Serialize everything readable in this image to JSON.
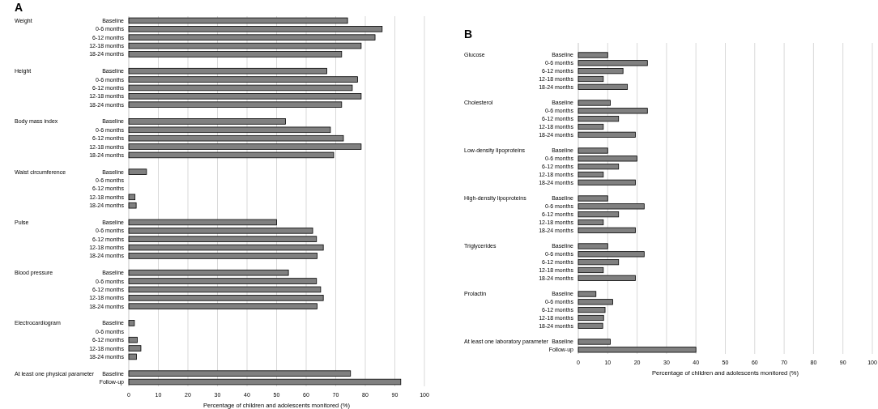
{
  "chart_data": [
    {
      "type": "bar",
      "orientation": "horizontal",
      "title": "A",
      "xlabel": "Percentage of children and adolescents monitored (%)",
      "categories": [
        "Baseline",
        "0-6 months",
        "6-12 months",
        "12-18 months",
        "18-24 months",
        null,
        "Baseline",
        "0-6 months",
        "6-12 months",
        "12-18 months",
        "18-24 months",
        null,
        "Baseline",
        "0-6 months",
        "6-12 months",
        "12-18 months",
        "18-24 months",
        null,
        "Baseline",
        "0-6 months",
        "6-12 months",
        "12-18 months",
        "18-24 months",
        null,
        "Baseline",
        "0-6 months",
        "6-12 months",
        "12-18 months",
        "18-24 months",
        null,
        "Baseline",
        "0-6 months",
        "6-12 months",
        "12-18 months",
        "18-24 months",
        null,
        "Baseline",
        "0-6 months",
        "6-12 months",
        "12-18 months",
        "18-24 months",
        null,
        "Baseline",
        "Follow-up"
      ],
      "values": [
        74,
        85.7,
        83.3,
        78.6,
        72,
        null,
        67,
        77.4,
        75.6,
        78.6,
        72,
        null,
        53,
        68.2,
        72.6,
        78.6,
        69.3,
        null,
        6,
        0,
        0,
        2.1,
        2.5,
        null,
        50,
        62.2,
        63.5,
        65.8,
        63.7,
        null,
        54,
        63.5,
        64.9,
        65.8,
        63.7,
        null,
        1.9,
        0,
        2.9,
        4.1,
        2.6,
        null,
        75,
        92
      ],
      "color": "#808080",
      "xlim": [
        0,
        100
      ],
      "xticks": [
        0,
        10,
        20,
        30,
        40,
        50,
        60,
        70,
        80,
        90,
        100
      ],
      "grid": "x",
      "annotations": [
        "Weight",
        "Height",
        "Body mass index",
        "Waist circumference",
        "Pulse",
        "Blood pressure",
        "Electrocardiogram",
        "At least one physical parameter"
      ]
    },
    {
      "type": "bar",
      "orientation": "horizontal",
      "title": "B",
      "xlabel": "Percentage of children and adolescents monitored (%)",
      "categories": [
        null,
        "Baseline",
        "0-6 months",
        "6-12 months",
        "12-18 months",
        "18-24 months",
        null,
        "Baseline",
        "0-6 months",
        "6-12 months",
        "12-18 months",
        "18-24 months",
        null,
        "Baseline",
        "0-6 months",
        "6-12 months",
        "12-18 months",
        "18-24 months",
        null,
        "Baseline",
        "0-6 months",
        "6-12 months",
        "12-18 months",
        "18-24 months",
        null,
        "Baseline",
        "0-6 months",
        "6-12 months",
        "12-18 months",
        "18-24 months",
        null,
        "Baseline",
        "0-6 months",
        "6-12 months",
        "12-18 months",
        "18-24 months",
        null,
        "Baseline",
        "Follow-up"
      ],
      "values": [
        null,
        10,
        23.5,
        15.2,
        8.5,
        16.7,
        null,
        10.9,
        23.5,
        13.7,
        8.5,
        19.4,
        null,
        10,
        20,
        13.7,
        8.5,
        19.4,
        null,
        10,
        22.4,
        13.7,
        8.5,
        19.4,
        null,
        10,
        22.4,
        13.7,
        8.5,
        19.4,
        null,
        6,
        11.7,
        9.1,
        8.6,
        8.3,
        null,
        10.9,
        40
      ],
      "color": "#808080",
      "xlim": [
        0,
        100
      ],
      "xticks": [
        0,
        10,
        20,
        30,
        40,
        50,
        60,
        70,
        80,
        90,
        100
      ],
      "grid": "x",
      "annotations": [
        "Glucose",
        "Cholesterol",
        "Low-density lipoproteins",
        "High-density lipoproteins",
        "Triglycerides",
        "Prolactin",
        "At least one laboratory parameter"
      ]
    }
  ]
}
